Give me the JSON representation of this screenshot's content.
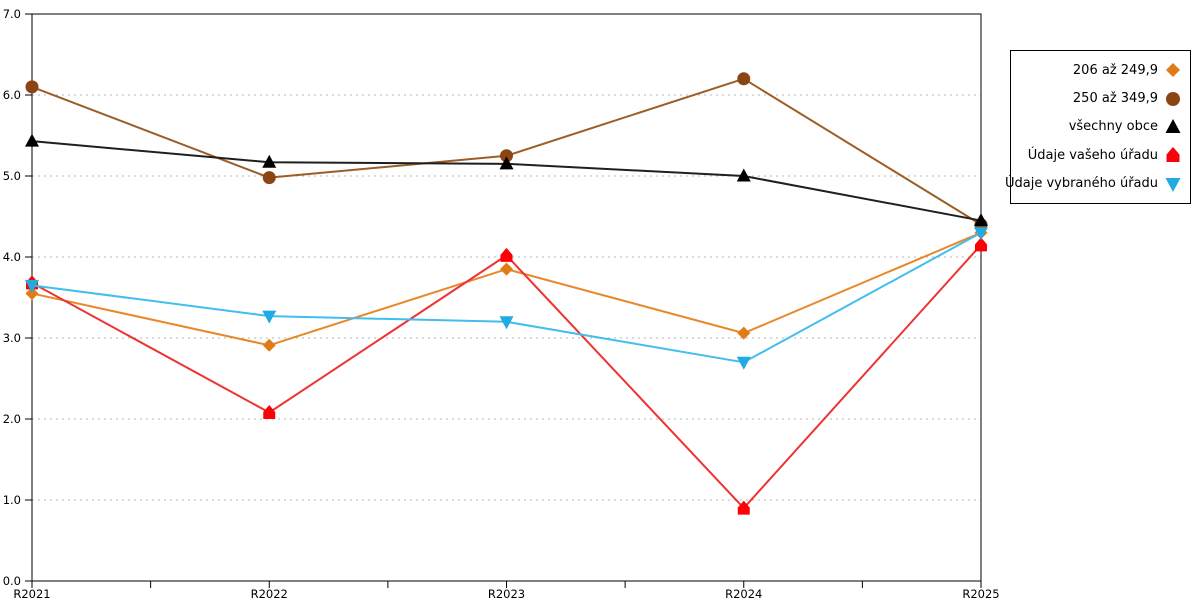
{
  "chart_data": {
    "type": "line",
    "title": "",
    "xlabel": "",
    "ylabel": "",
    "categories": [
      "R2021",
      "R2022",
      "R2023",
      "R2024",
      "R2025"
    ],
    "y_axis": {
      "min": 0,
      "max": 7,
      "step": 1,
      "tick_labels": [
        "0.0",
        "1.0",
        "2.0",
        "3.0",
        "4.0",
        "5.0",
        "6.0",
        "7.0"
      ]
    },
    "grid": "horizontal-dashed",
    "x_minor_ticks": "midpoints",
    "legend_position": "right-box",
    "series": [
      {
        "name": "206 až 249,9",
        "marker": "diamond",
        "color": "#e07c16",
        "line_color": "#e8882a",
        "values": [
          3.55,
          2.91,
          3.85,
          3.06,
          4.3
        ]
      },
      {
        "name": "250 až 349,9",
        "marker": "circle",
        "color": "#8b4513",
        "line_color": "#9c5d26",
        "values": [
          6.1,
          4.98,
          5.25,
          6.2,
          4.4
        ]
      },
      {
        "name": "všechny obce",
        "marker": "triangle-up",
        "color": "#000000",
        "line_color": "#1f1f1f",
        "values": [
          5.43,
          5.17,
          5.15,
          5.0,
          4.45
        ]
      },
      {
        "name": "Údaje vašeho úřadu",
        "marker": "pentagon-up",
        "color": "#fb0007",
        "line_color": "#ee3333",
        "values": [
          3.68,
          2.08,
          4.02,
          0.9,
          4.15
        ]
      },
      {
        "name": "Údaje vybraného úřadu",
        "marker": "triangle-down",
        "color": "#22aae4",
        "line_color": "#41bdee",
        "values": [
          3.65,
          3.27,
          3.2,
          2.7,
          4.3
        ]
      }
    ]
  },
  "colors": {
    "background": "#ffffff",
    "grid": "#b5b5b5",
    "axis": "#000000",
    "legend_border": "#000000",
    "text": "#000000"
  }
}
